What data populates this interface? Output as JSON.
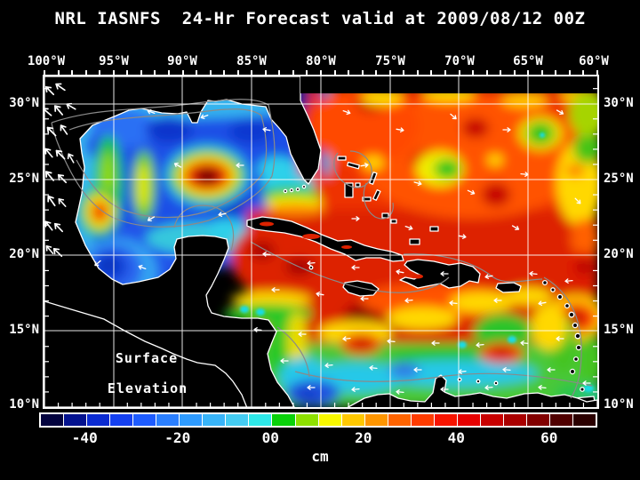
{
  "title": "NRL IASNFS  24-Hr Forecast valid at 2009/08/12 00Z",
  "map": {
    "annotation": {
      "line1": "Surface",
      "line2": "Elevation"
    },
    "x_axis": {
      "labels": [
        "100°W",
        "95°W",
        "90°W",
        "85°W",
        "80°W",
        "75°W",
        "70°W",
        "65°W",
        "60°W"
      ]
    },
    "y_axis": {
      "labels": [
        "30°N",
        "25°N",
        "20°N",
        "15°N",
        "10°N"
      ]
    }
  },
  "colorbar": {
    "tick_labels": [
      "-40",
      "-20",
      "00",
      "20",
      "40",
      "60"
    ],
    "unit": "cm",
    "colors": [
      "#02023e",
      "#03128f",
      "#0a2ad0",
      "#1440f0",
      "#1e5cff",
      "#2a7fff",
      "#2e9bff",
      "#38b4f8",
      "#44ccf2",
      "#2ee8e8",
      "#0ad00a",
      "#8ee000",
      "#f8f800",
      "#ffc800",
      "#ff9600",
      "#ff6400",
      "#ff3c00",
      "#f81400",
      "#e60000",
      "#c80000",
      "#aa0000",
      "#820000",
      "#500000",
      "#2a0000"
    ]
  },
  "chart_data": {
    "type": "heatmap",
    "title": "NRL IASNFS  24-Hr Forecast valid at 2009/08/12 00Z",
    "model": "NRL IASNFS",
    "forecast_valid": "2009/08/12 00Z",
    "variable": "Surface Elevation",
    "units": "cm",
    "x": {
      "label": "longitude",
      "ticks": [
        "100°W",
        "95°W",
        "90°W",
        "85°W",
        "80°W",
        "75°W",
        "70°W",
        "65°W",
        "60°W"
      ]
    },
    "y": {
      "label": "latitude",
      "ticks": [
        "30°N",
        "25°N",
        "20°N",
        "15°N",
        "10°N"
      ]
    },
    "colorbar": {
      "min": -50,
      "max": 70,
      "interval_cm": 5,
      "ticks": [
        -40,
        -20,
        0,
        20,
        40,
        60
      ],
      "colors": [
        "#02023e",
        "#03128f",
        "#0a2ad0",
        "#1440f0",
        "#1e5cff",
        "#2a7fff",
        "#2e9bff",
        "#38b4f8",
        "#44ccf2",
        "#2ee8e8",
        "#0ad00a",
        "#8ee000",
        "#f8f800",
        "#ffc800",
        "#ff9600",
        "#ff6400",
        "#ff3c00",
        "#f81400",
        "#e60000",
        "#c80000",
        "#aa0000",
        "#820000",
        "#500000",
        "#2a0000"
      ]
    },
    "grid": {
      "on": true,
      "lon_step_deg": 5,
      "lat_step_deg": 5
    },
    "regions_estimated_cm": [
      {
        "area": "Gulf of Mexico interior",
        "value": -20
      },
      {
        "area": "Loop Current warm eddy ~26N 88.5W",
        "value": 65
      },
      {
        "area": "Western Gulf eddy ~24N 96W",
        "value": 45
      },
      {
        "area": "Bay of Campeche",
        "value": -30
      },
      {
        "area": "Florida Current / east Florida coastal band",
        "value": -20
      },
      {
        "area": "Atlantic east of Bahamas",
        "value": 35
      },
      {
        "area": "North-central Caribbean (south of Hispaniola)",
        "value": 55
      },
      {
        "area": "Honduras / Nicaragua coastal band",
        "value": 5
      },
      {
        "area": "Southern Caribbean coastal band (Venezuela/Colombia)",
        "value": -10
      },
      {
        "area": "Eastern Atlantic edge 60W",
        "value": 15
      }
    ],
    "overlays": [
      "surface current vectors (white arrows)",
      "bathymetry contours (gray)",
      "5-degree lat/lon grid (white)"
    ]
  }
}
